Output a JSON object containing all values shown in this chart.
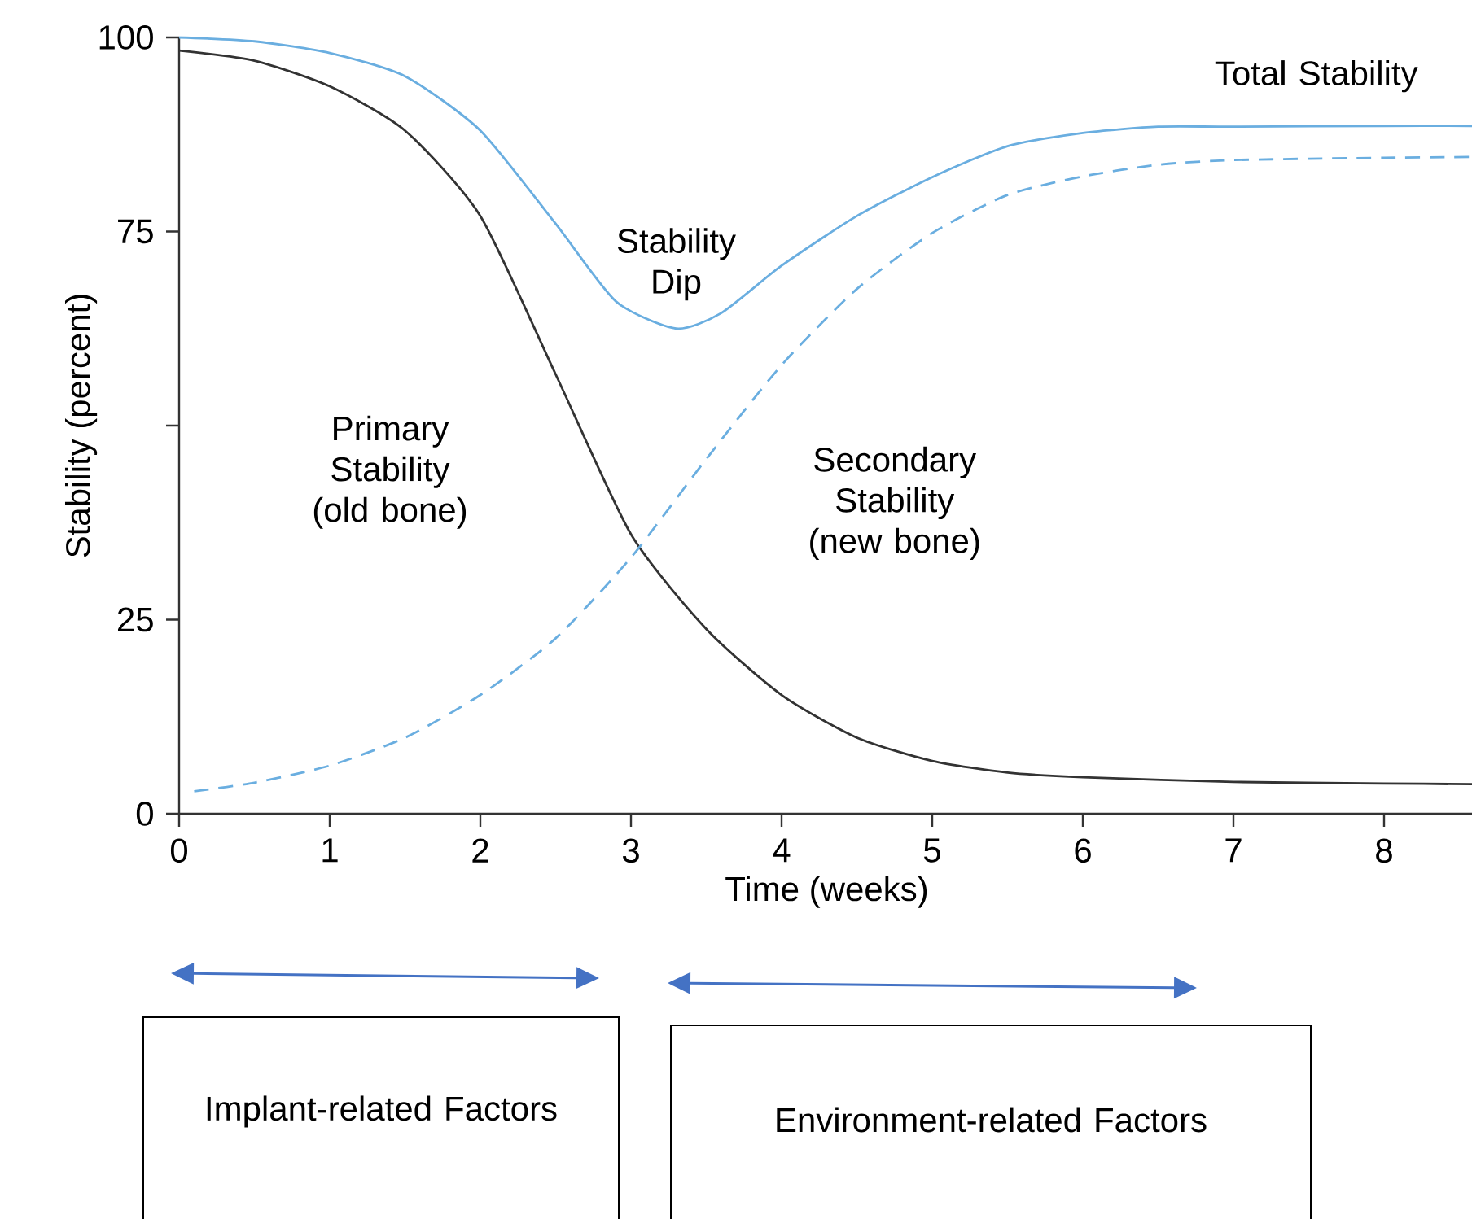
{
  "chart_data": {
    "type": "line",
    "xlabel": "Time (weeks)",
    "ylabel": "Stability (percent)",
    "xlim": [
      0,
      8.6
    ],
    "ylim": [
      0,
      100
    ],
    "xticks": [
      0,
      1,
      2,
      3,
      4,
      5,
      6,
      7,
      8
    ],
    "yticks": [
      0,
      25,
      {
        "value": 50,
        "label": null
      },
      75,
      100
    ],
    "series": [
      {
        "name": "Total Stability",
        "color": "#6aaee0",
        "line_style": "solid",
        "x": [
          0,
          0.5,
          1,
          1.5,
          2,
          2.5,
          2.9,
          3.3,
          3.6,
          4,
          4.5,
          5,
          5.5,
          6,
          6.5,
          7,
          8,
          8.6
        ],
        "values": [
          100,
          99.5,
          98,
          95,
          88,
          76,
          66,
          62.5,
          64.5,
          70.6,
          77,
          82,
          86,
          87.7,
          88.5,
          88.5,
          88.6,
          88.6
        ]
      },
      {
        "name": "Primary Stability (old bone)",
        "color": "#333333",
        "line_style": "solid",
        "x": [
          0,
          0.5,
          1,
          1.5,
          2,
          2.5,
          3,
          3.5,
          4,
          4.5,
          5,
          5.5,
          6,
          7,
          8,
          8.6
        ],
        "values": [
          98.3,
          97,
          93.7,
          88,
          77,
          56.6,
          36,
          23.8,
          15.3,
          9.8,
          6.8,
          5.3,
          4.7,
          4.1,
          3.9,
          3.8
        ]
      },
      {
        "name": "Secondary Stability (new bone)",
        "color": "#6aaee0",
        "line_style": "dashed",
        "x": [
          0.1,
          0.5,
          1,
          1.5,
          2,
          2.5,
          3,
          3.5,
          4,
          4.5,
          5,
          5.5,
          6,
          6.5,
          7,
          8,
          8.6
        ],
        "values": [
          2.9,
          4,
          6.2,
          9.8,
          15.3,
          22.6,
          33,
          45.7,
          57.8,
          67.6,
          74.8,
          79.7,
          82.1,
          83.6,
          84.2,
          84.5,
          84.6
        ]
      }
    ],
    "annotations": [
      {
        "text": "Stability Dip",
        "x": 3.3,
        "y": 62.5
      },
      "Implant-related Factors",
      "Environment-related Factors"
    ]
  }
}
